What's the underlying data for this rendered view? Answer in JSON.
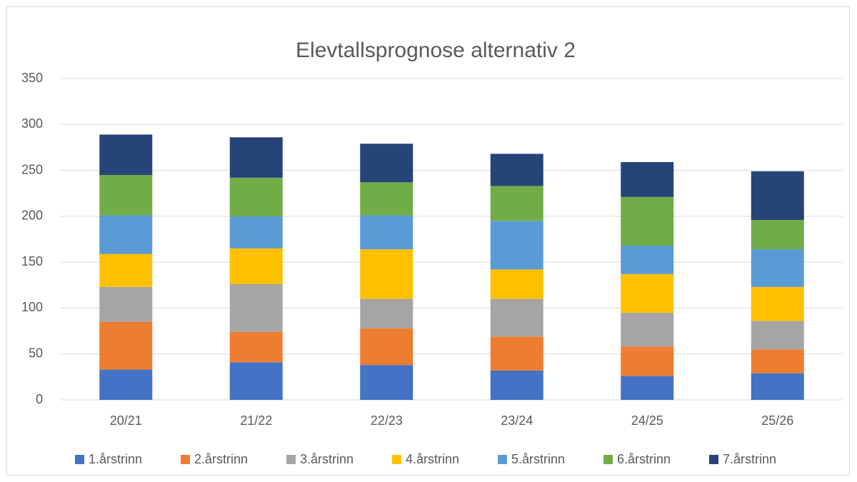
{
  "chart_data": {
    "type": "stacked_bar",
    "title": "Elevtallsprognose alternativ 2",
    "categories": [
      "20/21",
      "21/22",
      "22/23",
      "23/24",
      "24/25",
      "25/26"
    ],
    "series": [
      {
        "name": "1.årstrinn",
        "color": "#4472c4",
        "values": [
          33,
          41,
          38,
          32,
          26,
          29
        ]
      },
      {
        "name": "2.årstrinn",
        "color": "#ed7d31",
        "values": [
          52,
          33,
          40,
          37,
          32,
          26
        ]
      },
      {
        "name": "3.årstrinn",
        "color": "#a5a5a5",
        "values": [
          38,
          52,
          32,
          41,
          37,
          31
        ]
      },
      {
        "name": "4.årstrinn",
        "color": "#ffc000",
        "values": [
          36,
          39,
          54,
          32,
          42,
          37
        ]
      },
      {
        "name": "5.årstrinn",
        "color": "#5b9bd5",
        "values": [
          42,
          35,
          37,
          53,
          31,
          41
        ]
      },
      {
        "name": "6.årstrinn",
        "color": "#70ad47",
        "values": [
          44,
          42,
          36,
          38,
          53,
          32
        ]
      },
      {
        "name": "7.årstrinn",
        "color": "#264478",
        "values": [
          44,
          44,
          42,
          35,
          38,
          53
        ]
      }
    ],
    "ylim": [
      0,
      350
    ],
    "yticks": [
      0,
      50,
      100,
      150,
      200,
      250,
      300,
      350
    ],
    "grid": true,
    "legend": "bottom"
  }
}
